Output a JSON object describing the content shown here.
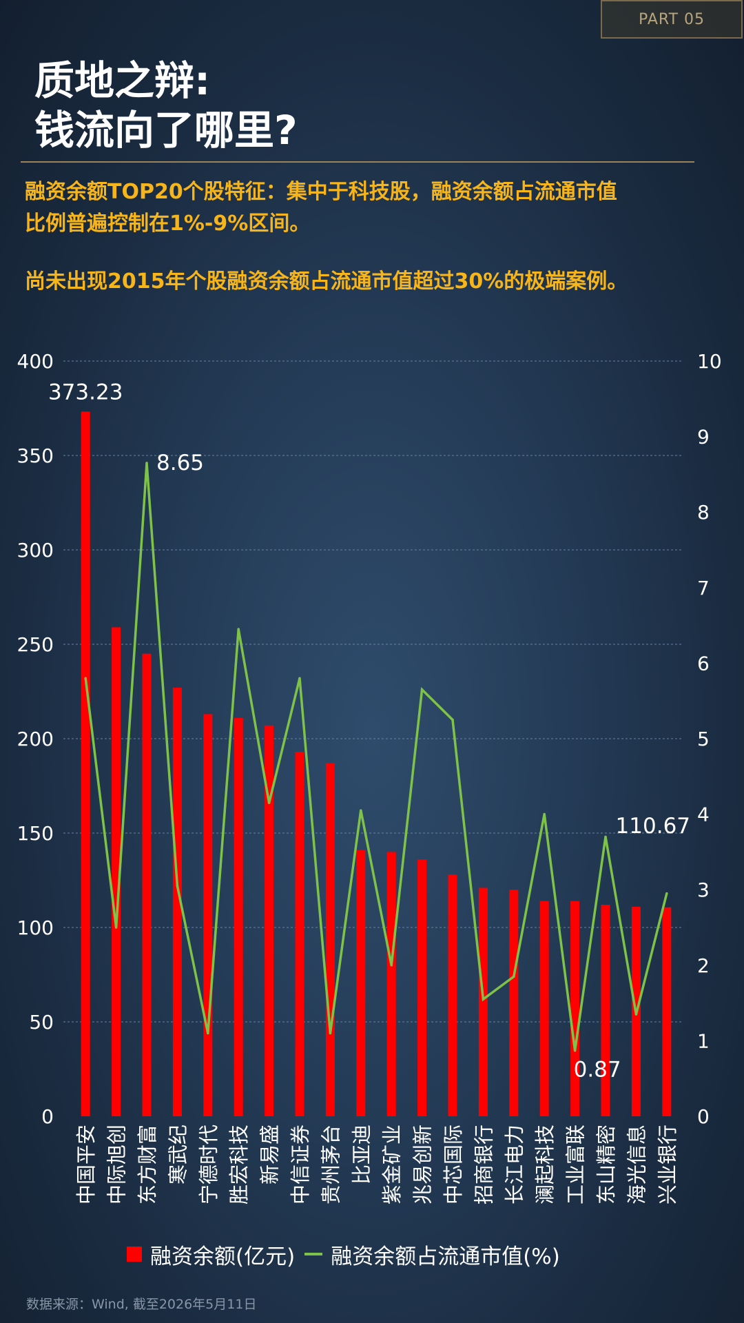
{
  "header": {
    "badge": "PART 05",
    "title_line1": "质地之辩:",
    "title_line2": "钱流向了哪里?",
    "subtitle_line1": "融资余额TOP20个股特征：集中于科技股，融资余额占流通市值",
    "subtitle_line2": "比例普遍控制在1%-9%区间。",
    "subtitle_line3": "尚未出现2015年个股融资余额占流通市值超过30%的极端案例。"
  },
  "colors": {
    "bar": "#ff0000",
    "line": "#7fc24a",
    "title": "#ffffff",
    "subtitle": "#f7b51a",
    "grid": "#6a82a0",
    "axis_text": "#ffffff"
  },
  "chart_data": {
    "type": "bar+line",
    "categories": [
      "中国平安",
      "中际旭创",
      "东方财富",
      "寒武纪",
      "宁德时代",
      "胜宏科技",
      "新易盛",
      "中信证券",
      "贵州茅台",
      "比亚迪",
      "紫金矿业",
      "兆易创新",
      "中芯国际",
      "招商银行",
      "长江电力",
      "澜起科技",
      "工业富联",
      "东山精密",
      "海光信息",
      "兴业银行"
    ],
    "series": [
      {
        "name": "融资余额(亿元)",
        "type": "bar",
        "axis": "left",
        "values": [
          373.23,
          259,
          245,
          227,
          213,
          211,
          207,
          193,
          187,
          141,
          140,
          136,
          128,
          121,
          120,
          114,
          114,
          112,
          111,
          110.67
        ]
      },
      {
        "name": "融资余额占流通市值(%)",
        "type": "line",
        "axis": "right",
        "values": [
          5.8,
          2.5,
          8.65,
          3.05,
          1.1,
          6.45,
          4.15,
          5.8,
          1.1,
          4.05,
          2.0,
          5.65,
          5.25,
          1.55,
          1.85,
          4.0,
          0.87,
          3.7,
          1.35,
          2.95
        ]
      }
    ],
    "y_left": {
      "min": 0,
      "max": 400,
      "ticks": [
        "0",
        "50",
        "100",
        "150",
        "200",
        "250",
        "300",
        "350",
        "400"
      ]
    },
    "y_right": {
      "min": 0,
      "max": 10,
      "ticks": [
        "0",
        "1",
        "2",
        "3",
        "4",
        "5",
        "6",
        "7",
        "8",
        "9",
        "10"
      ]
    },
    "annotations": [
      {
        "text": "373.23",
        "category_index": 0,
        "series": "bar"
      },
      {
        "text": "8.65",
        "category_index": 2,
        "series": "line"
      },
      {
        "text": "0.87",
        "category_index": 16,
        "series": "line"
      },
      {
        "text": "110.67",
        "category_index": 19,
        "series": "bar"
      }
    ],
    "grid": true,
    "legend_position": "bottom"
  },
  "legend": {
    "bar_label": "融资余额(亿元)",
    "line_label": "融资余额占流通市值(%)"
  },
  "footer": {
    "source": "数据来源：Wind, 截至2026年5月11日"
  }
}
